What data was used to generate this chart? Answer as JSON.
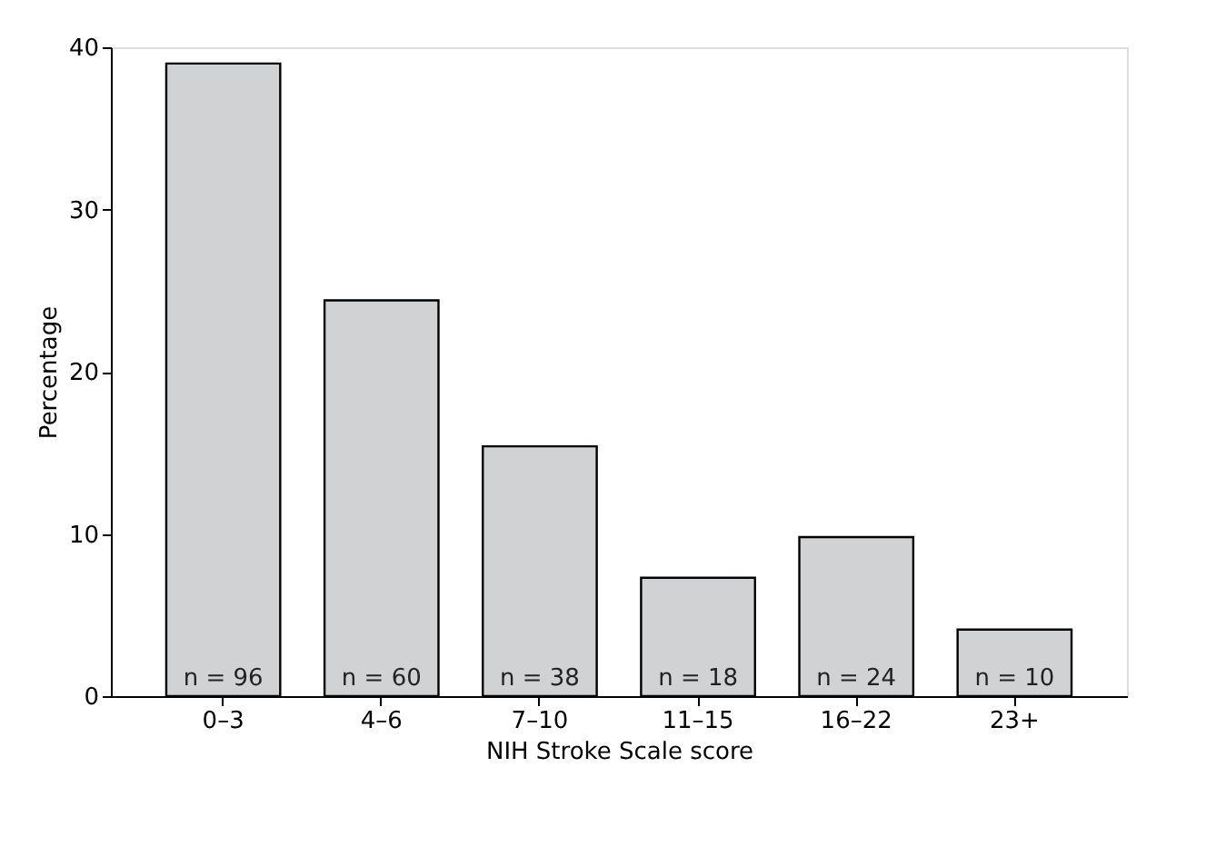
{
  "chart_data": {
    "type": "bar",
    "xlabel": "NIH Stroke Scale score",
    "ylabel": "Percentage",
    "categories": [
      "0–3",
      "4–6",
      "7–10",
      "11–15",
      "16–22",
      "23+"
    ],
    "values": [
      39.0,
      24.4,
      15.4,
      7.3,
      9.8,
      4.1
    ],
    "annotations": [
      {
        "text": "n = 96",
        "x": "0–3",
        "y": 0
      },
      {
        "text": "n = 60",
        "x": "4–6",
        "y": 0
      },
      {
        "text": "n = 38",
        "x": "7–10",
        "y": 0
      },
      {
        "text": "n = 18",
        "x": "11–15",
        "y": 0
      },
      {
        "text": "n = 24",
        "x": "16–22",
        "y": 0
      },
      {
        "text": "n = 10",
        "x": "23+",
        "y": 0
      }
    ],
    "color": "#d1d2d4",
    "ylim": [
      0,
      40
    ],
    "yticks": [
      0,
      10,
      20,
      30,
      40
    ],
    "grid": false
  }
}
